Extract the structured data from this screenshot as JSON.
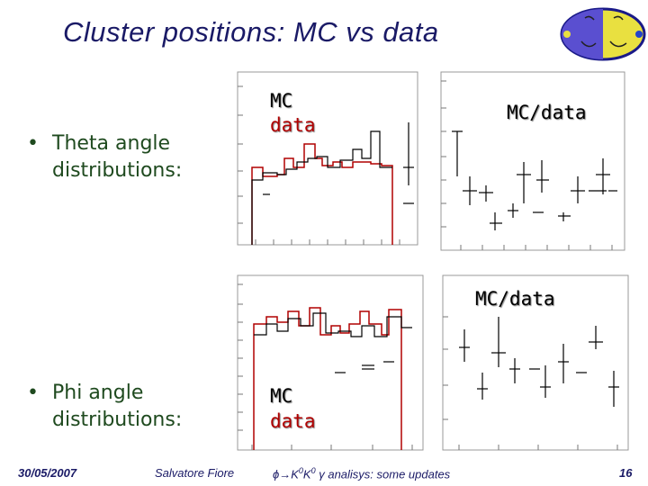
{
  "slide": {
    "title": "Cluster positions: MC vs data",
    "bullets": [
      {
        "line1": "Theta angle",
        "line2": "distributions:"
      },
      {
        "line1": "Phi angle",
        "line2": "distributions:"
      }
    ],
    "labels": {
      "mc": "MC",
      "data": "data",
      "ratio": "MC/data"
    },
    "colors": {
      "mc": "#000000",
      "data": "#b00000",
      "title": "#1a1a66",
      "bullet": "#1f4a1f"
    },
    "footer": {
      "date": "30/05/2007",
      "author": "Salvatore Fiore",
      "topic_prefix": "ϕ→K",
      "topic_sup1": "0",
      "topic_mid": "K",
      "topic_sup2": "0",
      "topic_suffix": " γ analisys: some updates",
      "page": "16"
    },
    "logo_icon": "kloe-logo-icon"
  }
}
